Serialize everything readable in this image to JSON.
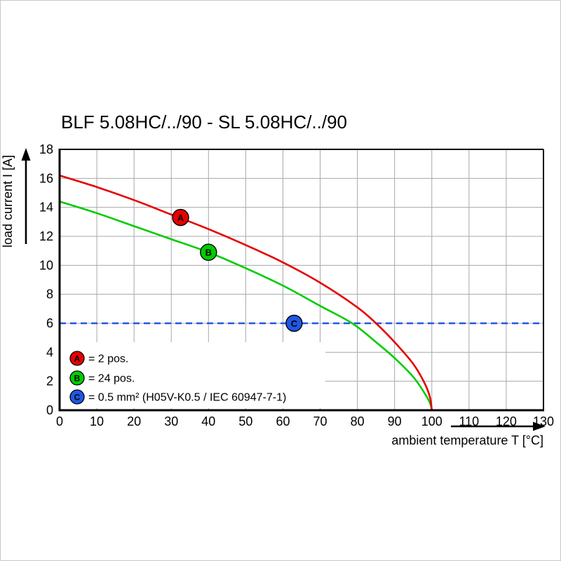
{
  "page": {
    "background": "#ffffff",
    "border_color": "#c8c8c8"
  },
  "chart_data": {
    "type": "line",
    "title": "BLF 5.08HC/../90 - SL 5.08HC/../90",
    "xlabel": "ambient temperature T [°C]",
    "ylabel": "load current I [A]",
    "xlim": [
      0,
      130
    ],
    "ylim": [
      0,
      18
    ],
    "x_ticks": [
      0,
      10,
      20,
      30,
      40,
      50,
      60,
      70,
      80,
      90,
      100,
      110,
      120,
      130
    ],
    "y_ticks": [
      0,
      2,
      4,
      6,
      8,
      10,
      12,
      14,
      16,
      18
    ],
    "grid": true,
    "grid_color": "#a8a8a8",
    "legend_position": "lower-left",
    "series": [
      {
        "name": "A",
        "label": "= 2 pos.",
        "color": "#e60000",
        "dashed": false,
        "points": [
          [
            0,
            16.2
          ],
          [
            10,
            15.4
          ],
          [
            20,
            14.5
          ],
          [
            30,
            13.5
          ],
          [
            40,
            12.5
          ],
          [
            50,
            11.4
          ],
          [
            60,
            10.2
          ],
          [
            70,
            8.8
          ],
          [
            80,
            7.1
          ],
          [
            85,
            6.0
          ],
          [
            90,
            4.7
          ],
          [
            95,
            3.2
          ],
          [
            98,
            1.9
          ],
          [
            99.5,
            0.9
          ],
          [
            100,
            0
          ]
        ]
      },
      {
        "name": "B",
        "label": "= 24 pos.",
        "color": "#00cc00",
        "dashed": false,
        "points": [
          [
            0,
            14.4
          ],
          [
            10,
            13.6
          ],
          [
            20,
            12.7
          ],
          [
            30,
            11.8
          ],
          [
            40,
            10.9
          ],
          [
            50,
            9.8
          ],
          [
            60,
            8.6
          ],
          [
            70,
            7.2
          ],
          [
            78.6,
            6.0
          ],
          [
            85,
            4.7
          ],
          [
            90,
            3.6
          ],
          [
            95,
            2.3
          ],
          [
            98,
            1.2
          ],
          [
            99.5,
            0.5
          ],
          [
            100,
            0
          ]
        ]
      },
      {
        "name": "C",
        "label": "= 0.5 mm² (H05V-K0.5 / IEC 60947-7-1)",
        "color": "#2057e4",
        "dashed": true,
        "points": [
          [
            0,
            6
          ],
          [
            130,
            6
          ]
        ]
      }
    ],
    "markers": [
      {
        "series": "A",
        "x": 32.5,
        "y": 13.3
      },
      {
        "series": "B",
        "x": 40,
        "y": 10.9
      },
      {
        "series": "C",
        "x": 63,
        "y": 6
      }
    ]
  }
}
